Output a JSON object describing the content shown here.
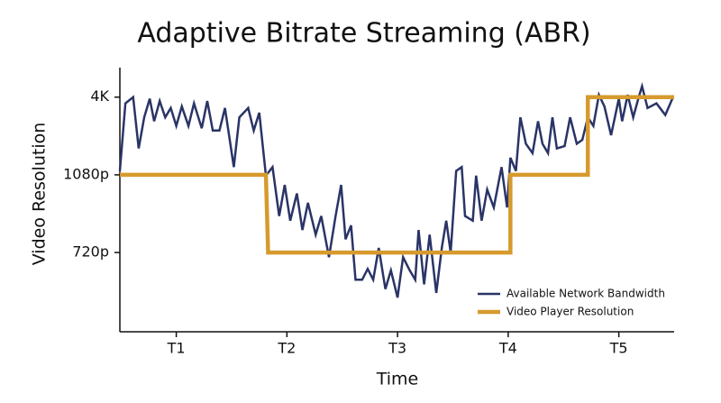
{
  "chart_data": {
    "type": "line",
    "title": "Adaptive Bitrate Streaming (ABR)",
    "x_label": "Time",
    "y_label": "Video Resolution",
    "xlim": [
      0.49,
      5.5
    ],
    "ylim": [
      -0.02,
      3.38
    ],
    "xticks": [
      {
        "value": 1,
        "label": "T1"
      },
      {
        "value": 2,
        "label": "T2"
      },
      {
        "value": 3,
        "label": "T3"
      },
      {
        "value": 4,
        "label": "T4"
      },
      {
        "value": 5,
        "label": "T5"
      }
    ],
    "yticks": [
      {
        "value": 1,
        "label": "720p"
      },
      {
        "value": 2,
        "label": "1080p"
      },
      {
        "value": 3,
        "label": "4K"
      }
    ],
    "legend": "lower right",
    "series": [
      {
        "name": "Available Network Bandwidth",
        "color": "#2a3466",
        "width": 2.5,
        "x": [
          0.49,
          0.54,
          0.61,
          0.66,
          0.71,
          0.76,
          0.8,
          0.85,
          0.9,
          0.95,
          1.0,
          1.05,
          1.11,
          1.16,
          1.23,
          1.28,
          1.33,
          1.39,
          1.44,
          1.52,
          1.57,
          1.65,
          1.7,
          1.75,
          1.81,
          1.87,
          1.93,
          1.98,
          2.03,
          2.09,
          2.14,
          2.19,
          2.26,
          2.31,
          2.38,
          2.44,
          2.49,
          2.53,
          2.58,
          2.62,
          2.68,
          2.73,
          2.78,
          2.83,
          2.89,
          2.94,
          3.0,
          3.05,
          3.11,
          3.16,
          3.19,
          3.24,
          3.29,
          3.35,
          3.4,
          3.44,
          3.48,
          3.53,
          3.58,
          3.61,
          3.68,
          3.71,
          3.76,
          3.81,
          3.87,
          3.94,
          3.99,
          4.02,
          4.07,
          4.11,
          4.16,
          4.22,
          4.27,
          4.31,
          4.36,
          4.4,
          4.44,
          4.51,
          4.56,
          4.62,
          4.67,
          4.72,
          4.77,
          4.82,
          4.87,
          4.93,
          5.0,
          5.03,
          5.08,
          5.13,
          5.18,
          5.21,
          5.26,
          5.34,
          5.42,
          5.49
        ],
        "values": [
          2.05,
          2.92,
          3.0,
          2.34,
          2.74,
          2.98,
          2.69,
          2.95,
          2.74,
          2.86,
          2.63,
          2.88,
          2.63,
          2.92,
          2.6,
          2.95,
          2.57,
          2.57,
          2.86,
          2.1,
          2.74,
          2.86,
          2.57,
          2.8,
          1.99,
          2.1,
          1.47,
          1.87,
          1.41,
          1.76,
          1.29,
          1.64,
          1.23,
          1.47,
          0.94,
          1.47,
          1.87,
          1.17,
          1.35,
          0.65,
          0.65,
          0.79,
          0.65,
          1.06,
          0.53,
          0.77,
          0.42,
          0.94,
          0.77,
          0.65,
          1.29,
          0.59,
          1.23,
          0.48,
          1.06,
          1.41,
          1.0,
          2.05,
          2.1,
          1.47,
          1.41,
          1.99,
          1.41,
          1.81,
          1.58,
          2.1,
          1.58,
          2.22,
          2.05,
          2.74,
          2.4,
          2.28,
          2.69,
          2.4,
          2.28,
          2.74,
          2.34,
          2.37,
          2.74,
          2.4,
          2.45,
          2.74,
          2.63,
          3.03,
          2.88,
          2.51,
          2.98,
          2.69,
          3.03,
          2.74,
          3.0,
          3.14,
          2.86,
          2.92,
          2.77,
          3.0
        ]
      },
      {
        "name": "Video Player Resolution",
        "color": "#d69a2d",
        "width": 4.5,
        "x": [
          0.49,
          1.81,
          1.83,
          4.02,
          4.02,
          4.72,
          4.72,
          5.5
        ],
        "values": [
          2,
          2,
          1,
          1,
          2,
          2,
          3,
          3
        ]
      }
    ]
  }
}
